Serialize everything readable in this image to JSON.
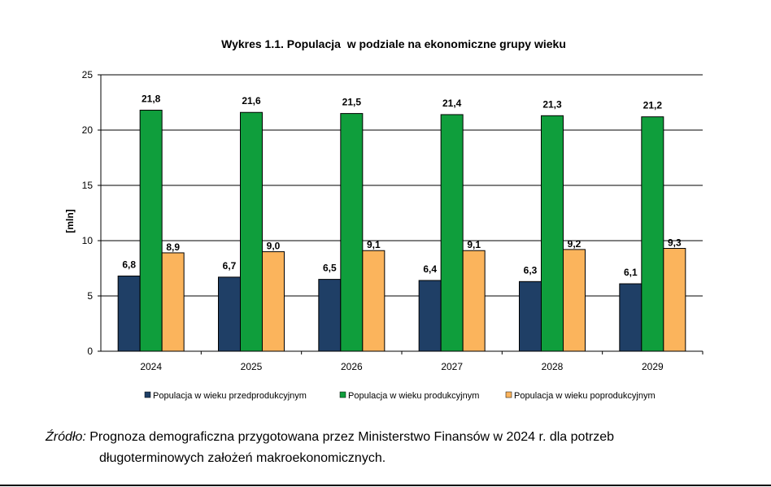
{
  "chart_data": {
    "type": "bar",
    "title": "Wykres 1.1. Populacja  w podziale na ekonomiczne grupy wieku",
    "ylabel": "[mln]",
    "xlabel": "",
    "ylim": [
      0,
      25
    ],
    "yticks": [
      "0",
      "5",
      "10",
      "15",
      "20",
      "25"
    ],
    "grid": true,
    "legend_position": "bottom",
    "categories": [
      "2024",
      "2025",
      "2026",
      "2027",
      "2028",
      "2029"
    ],
    "series": [
      {
        "name": "Populacja w wieku przedprodukcyjnym",
        "color": "#1f3f66",
        "values": [
          6.8,
          6.7,
          6.5,
          6.4,
          6.3,
          6.1
        ],
        "labels": [
          "6,8",
          "6,7",
          "6,5",
          "6,4",
          "6,3",
          "6,1"
        ]
      },
      {
        "name": "Populacja w wieku produkcyjnym",
        "color": "#0f9e3c",
        "values": [
          21.8,
          21.6,
          21.5,
          21.4,
          21.3,
          21.2
        ],
        "labels": [
          "21,8",
          "21,6",
          "21,5",
          "21,4",
          "21,3",
          "21,2"
        ]
      },
      {
        "name": "Populacja w wieku poprodukcyjnym",
        "color": "#fbb45c",
        "values": [
          8.9,
          9.0,
          9.1,
          9.1,
          9.2,
          9.3
        ],
        "labels": [
          "8,9",
          "9,0",
          "9,1",
          "9,1",
          "9,2",
          "9,3"
        ]
      }
    ]
  },
  "source": {
    "label": "Źródło:",
    "line1": " Prognoza demograficzna przygotowana przez Ministerstwo Finansów w 2024 r. dla potrzeb",
    "line2": "długoterminowych założeń makroekonomicznych."
  }
}
